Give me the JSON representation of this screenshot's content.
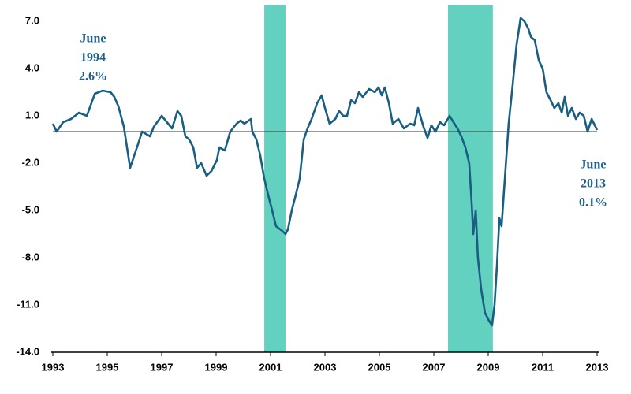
{
  "chart_data": {
    "type": "line",
    "annotations": [
      [
        "June",
        "1994",
        "2.6%"
      ],
      [
        "June",
        "2013",
        "0.1%"
      ]
    ],
    "shaded_ranges": [
      [
        2000.77,
        2001.55
      ],
      [
        2007.52,
        2009.17
      ]
    ],
    "shade_color": "#63d1bf",
    "reference_line": 0,
    "xlim": [
      1993,
      2013
    ],
    "xticks": [
      1993,
      1995,
      1997,
      1999,
      2001,
      2003,
      2005,
      2007,
      2009,
      2011,
      2013
    ],
    "ylim": [
      -14,
      7
    ],
    "yticks": [
      {
        "value": 7,
        "label": "7.0"
      },
      {
        "value": 4,
        "label": "4.0"
      },
      {
        "value": 1,
        "label": "1.0"
      },
      {
        "value": -2,
        "label": "-2.0"
      },
      {
        "value": -5,
        "label": "-5.0"
      },
      {
        "value": -8,
        "label": "-8.0"
      },
      {
        "value": -11,
        "label": "-11.0"
      },
      {
        "value": -14,
        "label": "-14.0"
      }
    ],
    "x": [
      1993.0,
      1993.14,
      1993.38,
      1993.67,
      1993.96,
      1994.25,
      1994.54,
      1994.83,
      1995.12,
      1995.26,
      1995.41,
      1995.61,
      1995.84,
      1996.13,
      1996.28,
      1996.57,
      1996.71,
      1997.0,
      1997.38,
      1997.58,
      1997.72,
      1997.87,
      1998.01,
      1998.16,
      1998.3,
      1998.45,
      1998.65,
      1998.83,
      1999.03,
      1999.12,
      1999.32,
      1999.52,
      1999.75,
      1999.9,
      2000.04,
      2000.28,
      2000.33,
      2000.48,
      2000.62,
      2000.77,
      2000.91,
      2001.06,
      2001.2,
      2001.43,
      2001.55,
      2001.64,
      2001.78,
      2001.93,
      2002.07,
      2002.22,
      2002.36,
      2002.51,
      2002.71,
      2002.88,
      2003.0,
      2003.17,
      2003.38,
      2003.52,
      2003.67,
      2003.81,
      2003.96,
      2004.1,
      2004.25,
      2004.39,
      2004.62,
      2004.83,
      2004.97,
      2005.09,
      2005.2,
      2005.35,
      2005.49,
      2005.7,
      2005.9,
      2006.13,
      2006.28,
      2006.42,
      2006.62,
      2006.77,
      2006.91,
      2007.06,
      2007.23,
      2007.38,
      2007.58,
      2007.72,
      2007.87,
      2008.01,
      2008.16,
      2008.3,
      2008.39,
      2008.45,
      2008.54,
      2008.62,
      2008.74,
      2008.88,
      2009.03,
      2009.14,
      2009.23,
      2009.32,
      2009.41,
      2009.49,
      2009.61,
      2009.75,
      2009.9,
      2010.04,
      2010.19,
      2010.33,
      2010.48,
      2010.57,
      2010.71,
      2010.86,
      2011.0,
      2011.14,
      2011.29,
      2011.43,
      2011.58,
      2011.7,
      2011.81,
      2011.93,
      2012.07,
      2012.22,
      2012.36,
      2012.51,
      2012.65,
      2012.8,
      2013.0
    ],
    "series": [
      {
        "color": "#1a5e82",
        "values": [
          0.5,
          0.0,
          0.6,
          0.8,
          1.2,
          1.0,
          2.4,
          2.6,
          2.5,
          2.2,
          1.6,
          0.3,
          -2.3,
          -0.8,
          0.0,
          -0.3,
          0.3,
          1.0,
          0.2,
          1.3,
          1.0,
          -0.3,
          -0.5,
          -1.0,
          -2.3,
          -2.0,
          -2.8,
          -2.5,
          -1.8,
          -1.0,
          -1.2,
          0.0,
          0.5,
          0.7,
          0.5,
          0.8,
          0.0,
          -0.5,
          -1.5,
          -3.0,
          -4.0,
          -5.0,
          -6.0,
          -6.3,
          -6.5,
          -6.2,
          -5.0,
          -4.0,
          -3.0,
          -0.5,
          0.2,
          0.8,
          1.8,
          2.3,
          1.5,
          0.5,
          0.8,
          1.3,
          1.0,
          1.0,
          2.0,
          1.8,
          2.5,
          2.2,
          2.7,
          2.5,
          2.8,
          2.3,
          2.8,
          1.8,
          0.5,
          0.8,
          0.2,
          0.5,
          0.4,
          1.5,
          0.3,
          -0.4,
          0.4,
          0.0,
          0.6,
          0.4,
          1.0,
          0.6,
          0.2,
          -0.3,
          -1.0,
          -2.0,
          -4.5,
          -6.5,
          -5.0,
          -8.0,
          -10.0,
          -11.5,
          -12.0,
          -12.3,
          -11.0,
          -8.5,
          -5.5,
          -6.0,
          -3.0,
          0.5,
          3.0,
          5.5,
          7.2,
          7.0,
          6.5,
          6.0,
          5.8,
          4.5,
          4.0,
          2.5,
          2.0,
          1.5,
          1.8,
          1.2,
          2.2,
          1.0,
          1.5,
          0.8,
          1.2,
          1.0,
          0.0,
          0.8,
          0.1
        ]
      }
    ]
  }
}
